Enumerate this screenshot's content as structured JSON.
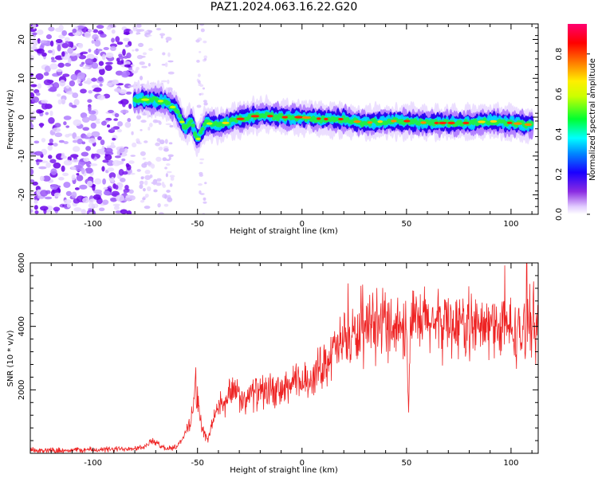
{
  "title": "PAZ1.2024.063.16.22.G20",
  "chart_data": [
    {
      "type": "heatmap",
      "xlabel": "Height of straight line (km)",
      "ylabel": "Frequency (Hz)",
      "xlim": [
        -130,
        113
      ],
      "ylim": [
        -25,
        24
      ],
      "xticks": [
        -100,
        -50,
        0,
        50,
        100
      ],
      "yticks": [
        -20,
        -10,
        0,
        10,
        20
      ],
      "colorbar": {
        "label": "Normalized spectral amplitude",
        "range": [
          0,
          0.95
        ],
        "ticks": [
          0.0,
          0.2,
          0.4,
          0.6,
          0.8
        ]
      },
      "signal_ridge": {
        "x": [
          -80,
          -72,
          -66,
          -60,
          -56,
          -53,
          -50,
          -46,
          -40,
          -30,
          -20,
          -10,
          0,
          10,
          20,
          30,
          40,
          50,
          60,
          70,
          80,
          90,
          100,
          110
        ],
        "frequency_hz": [
          4.5,
          4.5,
          4,
          2,
          -3,
          -1,
          -6,
          -1.5,
          -2,
          -0.5,
          0.5,
          0,
          0,
          -0.5,
          -0.5,
          -1.5,
          -1,
          -1,
          -1.5,
          -1.5,
          -1.5,
          -1,
          -1.5,
          -2
        ]
      }
    },
    {
      "type": "line",
      "xlabel": "Height of straight line (km)",
      "ylabel": "SNR (10 * v/v)",
      "xlim": [
        -130,
        113
      ],
      "ylim": [
        0,
        6000
      ],
      "xticks": [
        -100,
        -50,
        0,
        50,
        100
      ],
      "yticks": [
        2000,
        4000,
        6000
      ],
      "series": [
        {
          "color": "#ee2222",
          "x": [
            -130,
            -110,
            -90,
            -75,
            -72,
            -65,
            -60,
            -55,
            -52,
            -51,
            -48,
            -45,
            -42,
            -39,
            -37,
            -35,
            -30,
            -27,
            -25,
            -20,
            -15,
            -10,
            -5,
            0,
            5,
            10,
            15,
            20,
            25,
            30,
            35,
            40,
            45,
            50,
            51,
            52,
            55,
            60,
            65,
            70,
            75,
            80,
            85,
            90,
            95,
            100,
            105,
            110,
            113
          ],
          "y": [
            80,
            100,
            120,
            200,
            400,
            150,
            200,
            700,
            1500,
            2200,
            800,
            400,
            1200,
            1600,
            1400,
            2000,
            1800,
            1500,
            1900,
            1900,
            2000,
            1900,
            2200,
            2200,
            2400,
            2800,
            3200,
            3500,
            3700,
            3700,
            3900,
            4200,
            4000,
            4000,
            1500,
            4100,
            4000,
            4200,
            4000,
            4200,
            4000,
            4100,
            3900,
            4000,
            4000,
            3900,
            3700,
            4300,
            4000
          ]
        }
      ]
    }
  ]
}
